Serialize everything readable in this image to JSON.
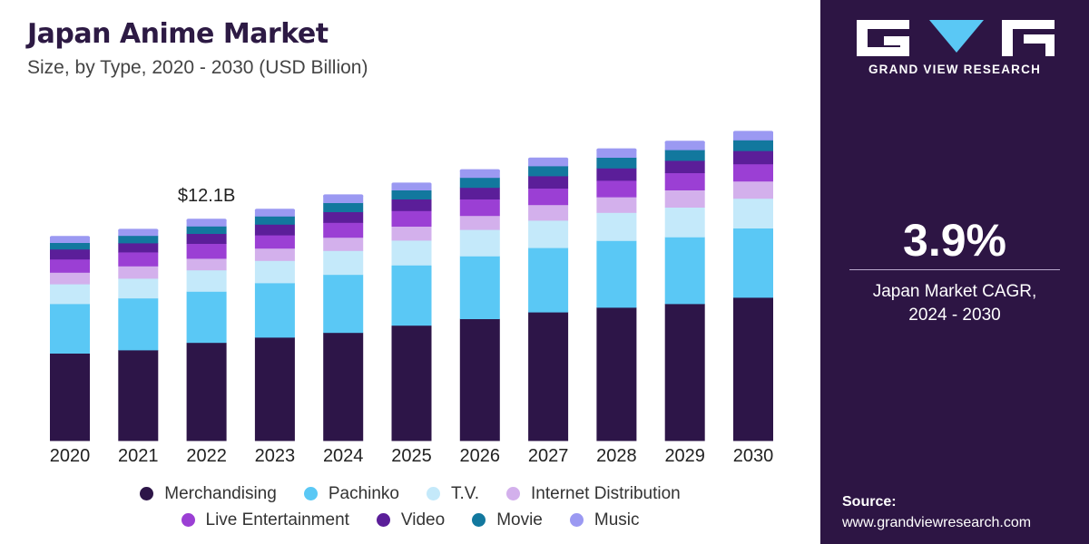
{
  "header": {
    "title": "Japan Anime Market",
    "subtitle": "Size, by Type, 2020 - 2030 (USD Billion)"
  },
  "chart_data": {
    "type": "bar",
    "stacked": true,
    "title": "Japan Anime Market",
    "subtitle": "Size, by Type, 2020 - 2030 (USD Billion)",
    "categories": [
      "2020",
      "2021",
      "2022",
      "2023",
      "2024",
      "2025",
      "2026",
      "2027",
      "2028",
      "2029",
      "2030"
    ],
    "ylim": [
      0,
      22
    ],
    "grid": false,
    "legend_position": "bottom",
    "annotations": [
      {
        "category": "2022",
        "text": "$12.1B"
      }
    ],
    "series": [
      {
        "name": "Merchandising",
        "color": "#2d1548",
        "values": [
          4.82,
          5.0,
          5.41,
          5.7,
          5.96,
          6.36,
          6.72,
          7.09,
          7.35,
          7.55,
          7.9
        ]
      },
      {
        "name": "Pachinko",
        "color": "#5ac8f5",
        "values": [
          2.73,
          2.86,
          2.82,
          3.0,
          3.2,
          3.32,
          3.46,
          3.55,
          3.68,
          3.68,
          3.82
        ]
      },
      {
        "name": "T.V.",
        "color": "#c4e9fa",
        "values": [
          1.09,
          1.09,
          1.18,
          1.23,
          1.32,
          1.37,
          1.46,
          1.51,
          1.55,
          1.64,
          1.64
        ]
      },
      {
        "name": "Internet Distribution",
        "color": "#d3b0ec",
        "values": [
          0.64,
          0.68,
          0.64,
          0.68,
          0.73,
          0.77,
          0.77,
          0.86,
          0.86,
          0.95,
          0.95
        ]
      },
      {
        "name": "Live Entertainment",
        "color": "#9b3fd4",
        "values": [
          0.73,
          0.77,
          0.82,
          0.73,
          0.82,
          0.86,
          0.91,
          0.91,
          0.91,
          0.95,
          0.95
        ]
      },
      {
        "name": "Video",
        "color": "#5b1e99",
        "values": [
          0.55,
          0.5,
          0.55,
          0.59,
          0.59,
          0.64,
          0.64,
          0.68,
          0.68,
          0.68,
          0.73
        ]
      },
      {
        "name": "Movie",
        "color": "#12789e",
        "values": [
          0.36,
          0.41,
          0.41,
          0.45,
          0.5,
          0.5,
          0.55,
          0.55,
          0.59,
          0.59,
          0.59
        ]
      },
      {
        "name": "Music",
        "color": "#9b99f2",
        "values": [
          0.32,
          0.32,
          0.36,
          0.36,
          0.41,
          0.36,
          0.41,
          0.41,
          0.45,
          0.45,
          0.45
        ]
      }
    ]
  },
  "sidebar": {
    "brand": "GRAND VIEW RESEARCH",
    "cagr_value": "3.9%",
    "cagr_label_line1": "Japan Market CAGR,",
    "cagr_label_line2": "2024 - 2030",
    "source_title": "Source:",
    "source_url": "www.grandviewresearch.com"
  },
  "icons": {
    "logo": "gvr-logo-icon"
  }
}
